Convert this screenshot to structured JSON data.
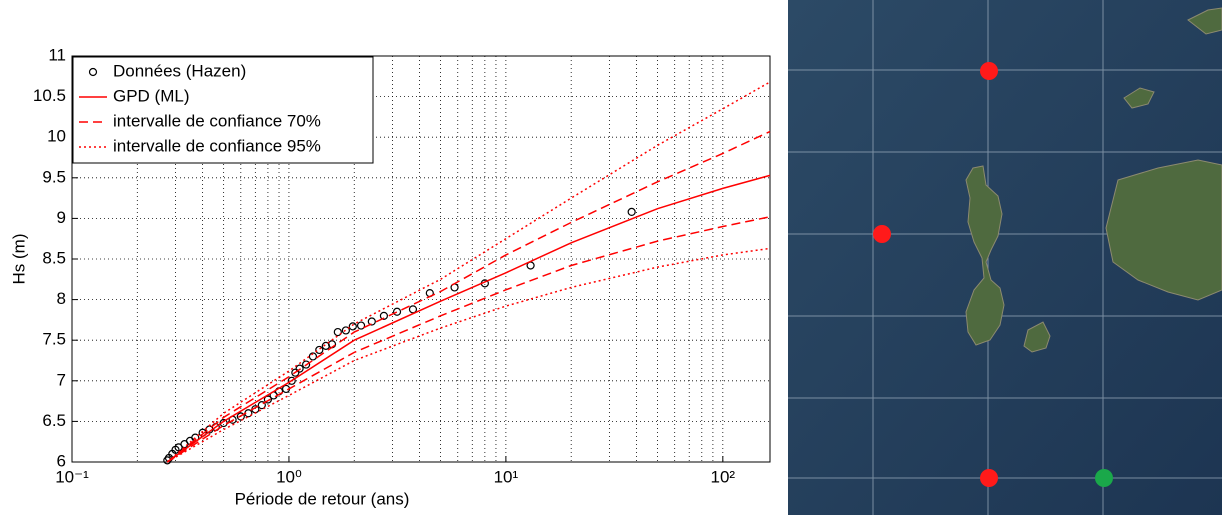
{
  "chart_data": {
    "type": "line",
    "xlabel": "Période de retour (ans)",
    "ylabel": "Hs (m)",
    "xscale": "log",
    "grid": true,
    "legend": "upper left",
    "xlim": [
      0.1,
      165
    ],
    "ylim": [
      6,
      11
    ],
    "xticks": [
      {
        "value": 0.1,
        "label": "10⁻¹"
      },
      {
        "value": 1,
        "label": "10⁰"
      },
      {
        "value": 10,
        "label": "10¹"
      },
      {
        "value": 100,
        "label": "10²"
      }
    ],
    "yticks": [
      6,
      6.5,
      7,
      7.5,
      8,
      8.5,
      9,
      9.5,
      10,
      10.5,
      11
    ],
    "x": [
      0.275,
      0.5,
      1,
      2,
      5,
      10,
      20,
      50,
      100,
      165
    ],
    "series": [
      {
        "name": "Données (Hazen)",
        "color": "#000000",
        "marker": "circle",
        "x": [
          0.275,
          0.28,
          0.29,
          0.3,
          0.31,
          0.33,
          0.35,
          0.37,
          0.4,
          0.43,
          0.46,
          0.5,
          0.55,
          0.6,
          0.65,
          0.7,
          0.75,
          0.8,
          0.85,
          0.9,
          0.97,
          1.03,
          1.07,
          1.12,
          1.2,
          1.29,
          1.38,
          1.48,
          1.58,
          1.68,
          1.83,
          1.97,
          2.15,
          2.41,
          2.74,
          3.15,
          3.73,
          4.46,
          5.8,
          8.0,
          13,
          38
        ],
        "values": [
          6.02,
          6.05,
          6.1,
          6.15,
          6.18,
          6.22,
          6.26,
          6.3,
          6.36,
          6.4,
          6.43,
          6.48,
          6.52,
          6.56,
          6.6,
          6.65,
          6.7,
          6.77,
          6.82,
          6.87,
          6.9,
          7.0,
          7.1,
          7.15,
          7.2,
          7.3,
          7.38,
          7.43,
          7.45,
          7.6,
          7.62,
          7.67,
          7.68,
          7.73,
          7.8,
          7.85,
          7.88,
          8.08,
          8.15,
          8.2,
          8.42,
          9.08
        ]
      },
      {
        "name": "GPD (ML)",
        "color": "#ff0000",
        "dash": "solid",
        "values": [
          6.0,
          6.5,
          6.98,
          7.5,
          7.98,
          8.33,
          8.7,
          9.12,
          9.37,
          9.53
        ]
      },
      {
        "name": "intervalle de confiance 70%",
        "color": "#ff0000",
        "dash": "dashed",
        "upper": [
          6.0,
          6.55,
          7.05,
          7.6,
          8.1,
          8.55,
          8.95,
          9.45,
          9.8,
          10.07
        ],
        "lower": [
          6.0,
          6.45,
          6.9,
          7.35,
          7.8,
          8.12,
          8.42,
          8.72,
          8.9,
          9.02
        ]
      },
      {
        "name": "intervalle de confiance 95%",
        "color": "#ff0000",
        "dash": "dotted",
        "upper": [
          6.0,
          6.6,
          7.12,
          7.7,
          8.25,
          8.75,
          9.25,
          9.9,
          10.35,
          10.68
        ],
        "lower": [
          6.0,
          6.4,
          6.82,
          7.25,
          7.65,
          7.92,
          8.15,
          8.4,
          8.55,
          8.63
        ]
      }
    ]
  }
}
